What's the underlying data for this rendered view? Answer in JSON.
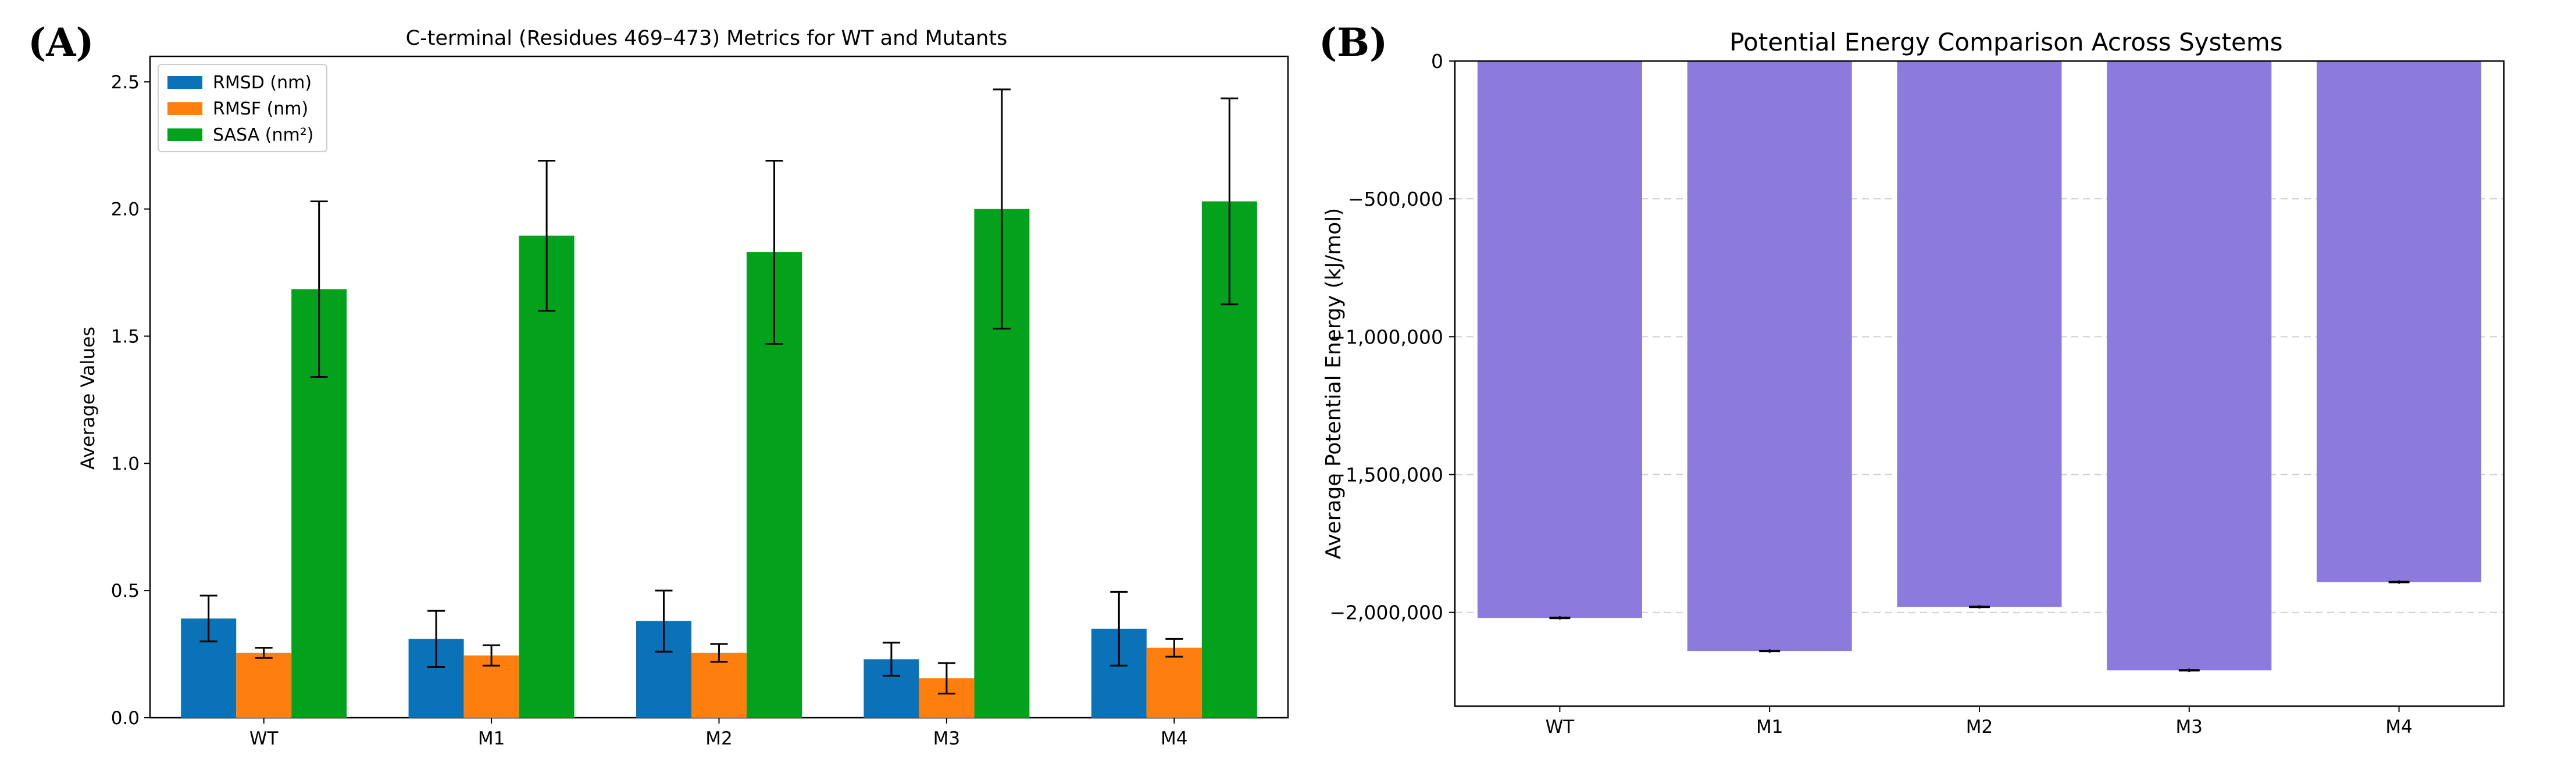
{
  "panels": {
    "a": {
      "label": "(A)"
    },
    "b": {
      "label": "(B)"
    }
  },
  "chart_data": [
    {
      "type": "bar",
      "title": "C-terminal (Residues 469–473) Metrics for WT and Mutants",
      "xlabel": "",
      "ylabel": "Average Values",
      "categories": [
        "WT",
        "M1",
        "M2",
        "M3",
        "M4"
      ],
      "ylim": [
        0,
        2.6
      ],
      "yticks": [
        0.0,
        0.5,
        1.0,
        1.5,
        2.0,
        2.5
      ],
      "ytick_labels": [
        "0.0",
        "0.5",
        "1.0",
        "1.5",
        "2.0",
        "2.5"
      ],
      "legend_position": "top-left",
      "grid": false,
      "series": [
        {
          "name": "RMSD (nm)",
          "color": "#0b72b7",
          "values": [
            0.39,
            0.31,
            0.38,
            0.23,
            0.35
          ],
          "errors": [
            0.09,
            0.11,
            0.12,
            0.065,
            0.145
          ]
        },
        {
          "name": "RMSF (nm)",
          "color": "#ff7f0e",
          "values": [
            0.255,
            0.245,
            0.255,
            0.155,
            0.275
          ],
          "errors": [
            0.02,
            0.04,
            0.035,
            0.06,
            0.035
          ]
        },
        {
          "name": "SASA (nm²)",
          "color": "#04a21c",
          "values": [
            1.685,
            1.895,
            1.83,
            2.0,
            2.03
          ],
          "errors": [
            0.345,
            0.295,
            0.36,
            0.47,
            0.405
          ]
        }
      ]
    },
    {
      "type": "bar",
      "title": "Potential Energy Comparison Across Systems",
      "xlabel": "",
      "ylabel": "Average Potential Energy (kJ/mol)",
      "categories": [
        "WT",
        "M1",
        "M2",
        "M3",
        "M4"
      ],
      "ylim": [
        -2340000,
        0
      ],
      "yticks": [
        0,
        -500000,
        -1000000,
        -1500000,
        -2000000
      ],
      "ytick_labels": [
        "0",
        "−500,000",
        "−1,000,000",
        "−1,500,000",
        "−2,000,000"
      ],
      "grid": true,
      "color": "#8c7bdc",
      "values": [
        -2020000,
        -2140000,
        -1980000,
        -2210000,
        -1890000
      ],
      "errors": [
        6000,
        6000,
        6000,
        6000,
        6000
      ]
    }
  ]
}
